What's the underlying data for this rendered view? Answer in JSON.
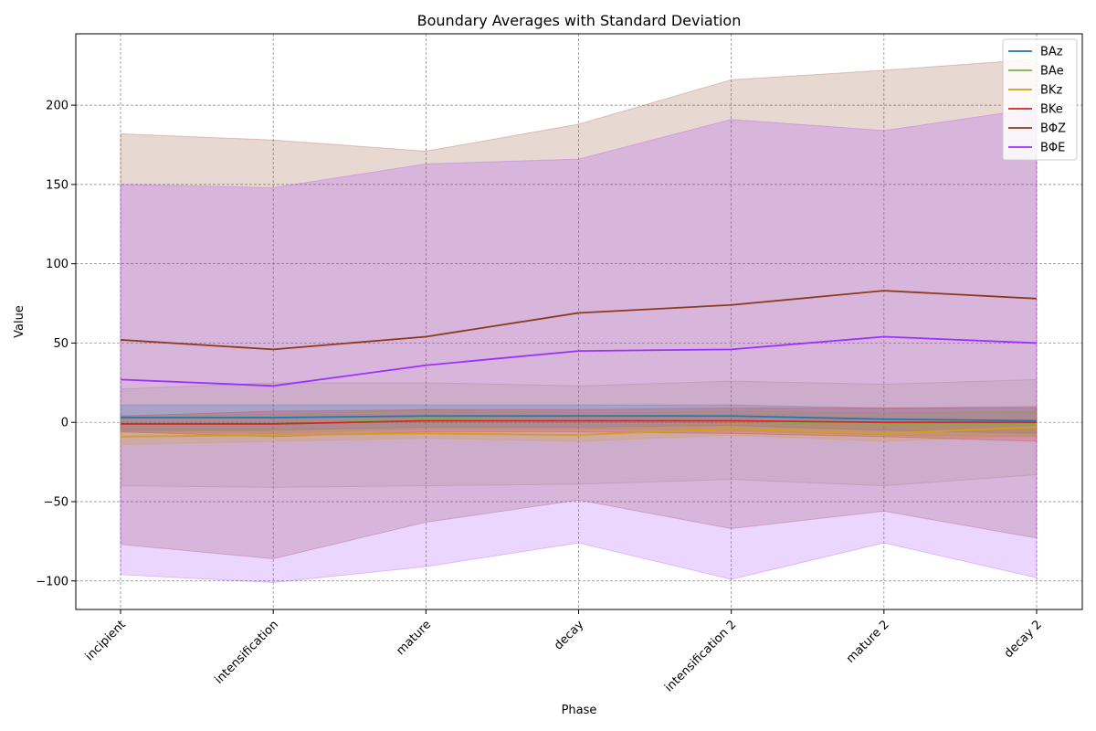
{
  "chart_data": {
    "type": "line",
    "title": "Boundary Averages with Standard Deviation",
    "xlabel": "Phase",
    "ylabel": "Value",
    "categories": [
      "incipient",
      "intensification",
      "mature",
      "decay",
      "intensification 2",
      "mature 2",
      "decay 2"
    ],
    "ylim": [
      -118,
      245
    ],
    "yticks": [
      -100,
      -50,
      0,
      50,
      100,
      150,
      200
    ],
    "grid": true,
    "legend_position": "top-right",
    "series": [
      {
        "name": "BAz",
        "color": "#1f77b4",
        "values": [
          3,
          3,
          4,
          4,
          4,
          2,
          1
        ],
        "lower": [
          -5,
          -5,
          -3,
          -3,
          -2,
          -5,
          -7
        ],
        "upper": [
          11,
          11,
          11,
          11,
          11,
          9,
          9
        ]
      },
      {
        "name": "BAe",
        "color": "#7cb342",
        "values": [
          -1,
          -1,
          2,
          1,
          1,
          -1,
          -1
        ],
        "lower": [
          -6,
          -7,
          -4,
          -4,
          -5,
          -8,
          -9
        ],
        "upper": [
          4,
          5,
          8,
          6,
          7,
          6,
          7
        ]
      },
      {
        "name": "BKz",
        "color": "#d4a017",
        "values": [
          -9,
          -8,
          -7,
          -8,
          -4,
          -7,
          -3
        ],
        "lower": [
          -14,
          -12,
          -10,
          -12,
          -8,
          -12,
          -8
        ],
        "upper": [
          -4,
          -4,
          -4,
          -4,
          0,
          -2,
          2
        ]
      },
      {
        "name": "BKe",
        "color": "#d62728",
        "values": [
          -1,
          -1,
          1,
          1,
          1,
          0,
          0
        ],
        "lower": [
          -6,
          -9,
          -6,
          -6,
          -7,
          -9,
          -12
        ],
        "upper": [
          4,
          7,
          8,
          8,
          9,
          9,
          10
        ]
      },
      {
        "name": "BΦZ",
        "color": "#8b3a1f",
        "values": [
          52,
          46,
          54,
          69,
          74,
          83,
          78
        ],
        "lower": [
          -77,
          -86,
          -63,
          -49,
          -67,
          -56,
          -73
        ],
        "upper": [
          182,
          178,
          171,
          188,
          216,
          222,
          229
        ]
      },
      {
        "name": "BΦE",
        "color": "#9b30ff",
        "values": [
          27,
          23,
          36,
          45,
          46,
          54,
          50
        ],
        "lower": [
          -96,
          -101,
          -91,
          -76,
          -99,
          -76,
          -98
        ],
        "upper": [
          150,
          148,
          163,
          166,
          191,
          184,
          198
        ]
      }
    ],
    "inner_bands": [
      {
        "lower": [
          -40,
          -41,
          -40,
          -39,
          -36,
          -40,
          -33
        ],
        "upper": [
          21,
          25,
          25,
          23,
          26,
          24,
          27
        ],
        "color": "#a0906f"
      }
    ]
  }
}
